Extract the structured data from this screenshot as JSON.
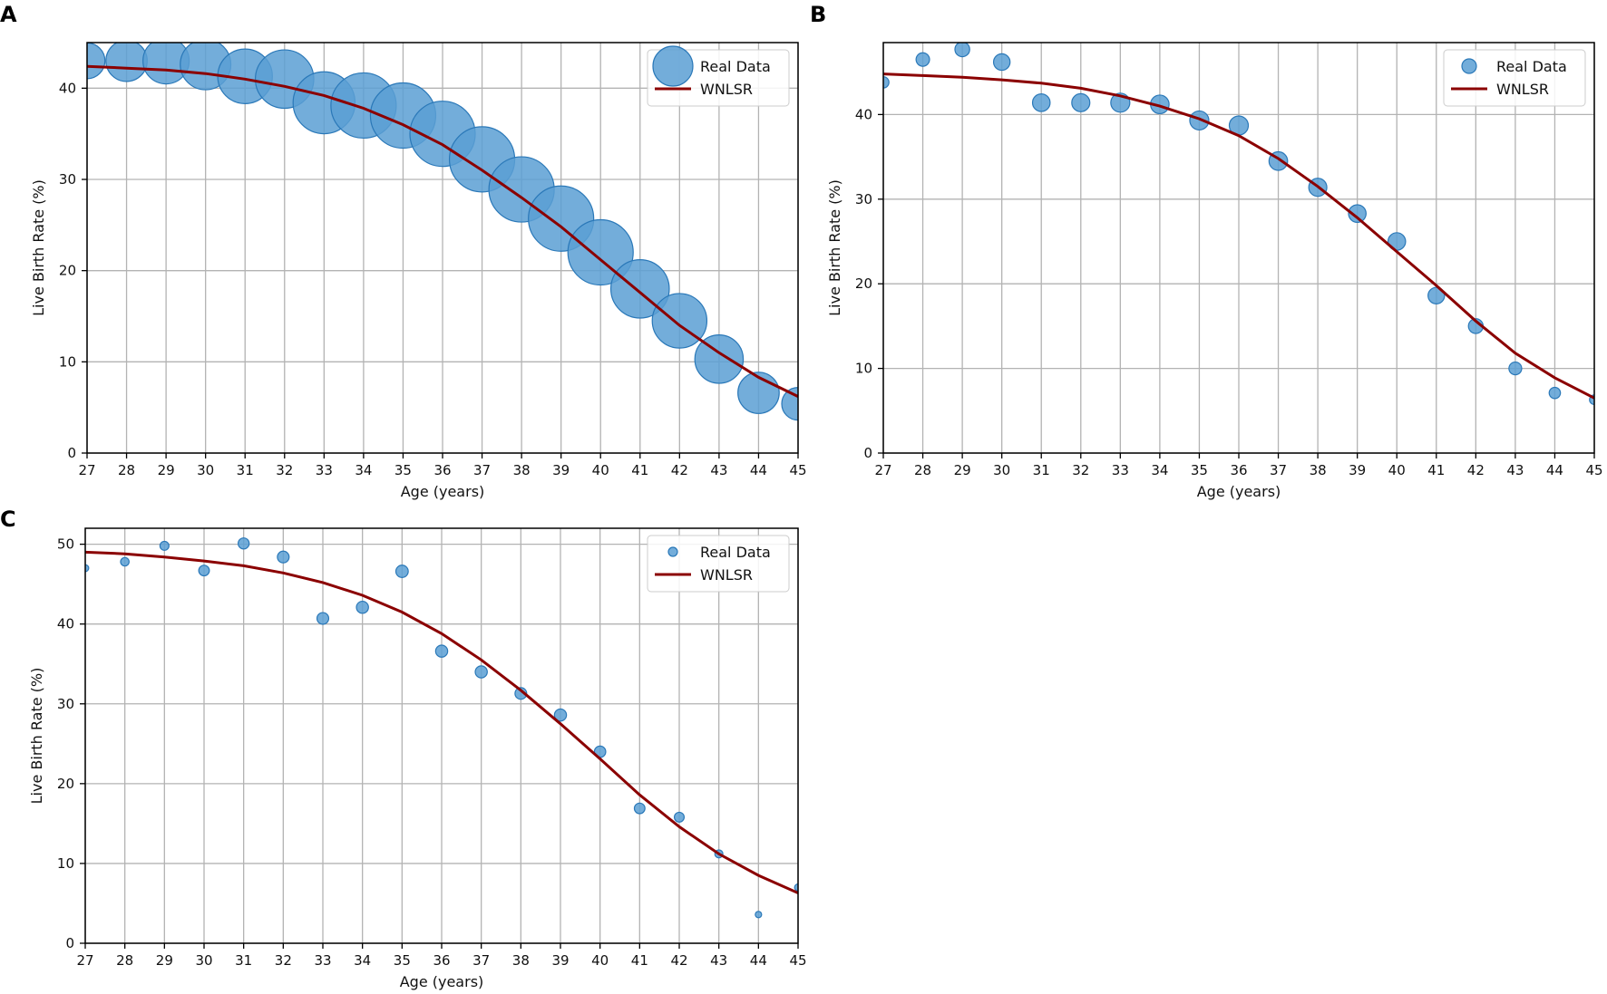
{
  "chart_data": [
    {
      "panel": "A",
      "type": "scatter",
      "xlabel": "Age (years)",
      "ylabel": "Live Birth Rate (%)",
      "xlim": [
        27,
        45
      ],
      "ylim": [
        0,
        45
      ],
      "xticks": [
        27,
        28,
        29,
        30,
        31,
        32,
        33,
        34,
        35,
        36,
        37,
        38,
        39,
        40,
        41,
        42,
        43,
        44,
        45
      ],
      "yticks": [
        0,
        10,
        20,
        30,
        40
      ],
      "grid": true,
      "legend_position": "top-right",
      "series": [
        {
          "name": "Real Data",
          "kind": "scatter",
          "color": "#5a9fd4",
          "edge_color": "#2a78b8",
          "x": [
            27,
            28,
            29,
            30,
            31,
            32,
            33,
            34,
            35,
            36,
            37,
            38,
            39,
            40,
            41,
            42,
            43,
            44,
            45
          ],
          "y": [
            43.0,
            43.0,
            43.0,
            42.6,
            41.3,
            41.0,
            38.4,
            38.1,
            37.0,
            35.0,
            32.2,
            28.9,
            25.7,
            22.0,
            18.0,
            14.5,
            10.3,
            6.6,
            5.4
          ],
          "marker_size_relative": [
            0.3,
            0.4,
            0.5,
            0.6,
            0.7,
            0.8,
            0.9,
            1.0,
            1.0,
            1.0,
            1.0,
            1.0,
            1.0,
            1.0,
            0.8,
            0.7,
            0.55,
            0.4,
            0.25
          ]
        },
        {
          "name": "WNLSR",
          "kind": "line",
          "color": "#8b0000",
          "x": [
            27,
            28,
            29,
            30,
            31,
            32,
            33,
            34,
            35,
            36,
            37,
            38,
            39,
            40,
            41,
            42,
            43,
            44,
            45
          ],
          "y": [
            42.4,
            42.2,
            42.0,
            41.6,
            41.0,
            40.2,
            39.2,
            37.8,
            36.0,
            33.8,
            31.0,
            28.0,
            24.8,
            21.2,
            17.6,
            14.0,
            11.0,
            8.3,
            6.2
          ]
        }
      ]
    },
    {
      "panel": "B",
      "type": "scatter",
      "xlabel": "Age (years)",
      "ylabel": "Live Birth Rate (%)",
      "xlim": [
        27,
        45
      ],
      "ylim": [
        0,
        48.5
      ],
      "xticks": [
        27,
        28,
        29,
        30,
        31,
        32,
        33,
        34,
        35,
        36,
        37,
        38,
        39,
        40,
        41,
        42,
        43,
        44,
        45
      ],
      "yticks": [
        0,
        10,
        20,
        30,
        40
      ],
      "grid": true,
      "legend_position": "top-right",
      "series": [
        {
          "name": "Real Data",
          "kind": "scatter",
          "color": "#5a9fd4",
          "edge_color": "#2a78b8",
          "x": [
            27,
            28,
            29,
            30,
            31,
            32,
            33,
            34,
            35,
            36,
            37,
            38,
            39,
            40,
            41,
            42,
            43,
            44,
            45
          ],
          "y": [
            43.8,
            46.5,
            47.7,
            46.2,
            41.4,
            41.4,
            41.4,
            41.2,
            39.3,
            38.7,
            34.5,
            31.4,
            28.3,
            25.0,
            18.6,
            15.0,
            10.0,
            7.1,
            6.3
          ],
          "marker_size_relative": [
            0.35,
            0.5,
            0.6,
            0.75,
            0.85,
            0.9,
            1.0,
            0.95,
            1.0,
            1.0,
            0.95,
            0.9,
            0.85,
            0.85,
            0.75,
            0.6,
            0.45,
            0.35,
            0.25
          ]
        },
        {
          "name": "WNLSR",
          "kind": "line",
          "color": "#8b0000",
          "x": [
            27,
            28,
            29,
            30,
            31,
            32,
            33,
            34,
            35,
            36,
            37,
            38,
            39,
            40,
            41,
            42,
            43,
            44,
            45
          ],
          "y": [
            44.8,
            44.6,
            44.4,
            44.1,
            43.7,
            43.1,
            42.2,
            41.0,
            39.5,
            37.5,
            34.8,
            31.5,
            27.8,
            23.8,
            19.8,
            15.6,
            11.8,
            8.9,
            6.5
          ]
        }
      ]
    },
    {
      "panel": "C",
      "type": "scatter",
      "xlabel": "Age (years)",
      "ylabel": "Live Birth Rate (%)",
      "xlim": [
        27,
        45
      ],
      "ylim": [
        0,
        52
      ],
      "xticks": [
        27,
        28,
        29,
        30,
        31,
        32,
        33,
        34,
        35,
        36,
        37,
        38,
        39,
        40,
        41,
        42,
        43,
        44,
        45
      ],
      "yticks": [
        0,
        10,
        20,
        30,
        40,
        50
      ],
      "grid": true,
      "legend_position": "top-right",
      "series": [
        {
          "name": "Real Data",
          "kind": "scatter",
          "color": "#5a9fd4",
          "edge_color": "#2a78b8",
          "x": [
            27,
            28,
            29,
            30,
            31,
            32,
            33,
            34,
            35,
            36,
            37,
            38,
            39,
            40,
            41,
            42,
            43,
            44,
            45
          ],
          "y": [
            47.0,
            47.8,
            49.8,
            46.7,
            50.1,
            48.4,
            40.7,
            42.1,
            46.6,
            36.6,
            34.0,
            31.3,
            28.6,
            24.0,
            16.9,
            15.8,
            11.2,
            3.6,
            7.0
          ],
          "marker_size_relative": [
            0.3,
            0.45,
            0.5,
            0.7,
            0.75,
            0.85,
            0.85,
            0.9,
            0.95,
            0.9,
            0.9,
            0.85,
            0.9,
            0.8,
            0.7,
            0.6,
            0.4,
            0.25,
            0.3
          ]
        },
        {
          "name": "WNLSR",
          "kind": "line",
          "color": "#8b0000",
          "x": [
            27,
            28,
            29,
            30,
            31,
            32,
            33,
            34,
            35,
            36,
            37,
            38,
            39,
            40,
            41,
            42,
            43,
            44,
            45
          ],
          "y": [
            49.0,
            48.8,
            48.4,
            47.9,
            47.3,
            46.4,
            45.2,
            43.6,
            41.5,
            38.8,
            35.5,
            31.7,
            27.5,
            23.1,
            18.6,
            14.6,
            11.2,
            8.5,
            6.3
          ]
        }
      ]
    }
  ]
}
